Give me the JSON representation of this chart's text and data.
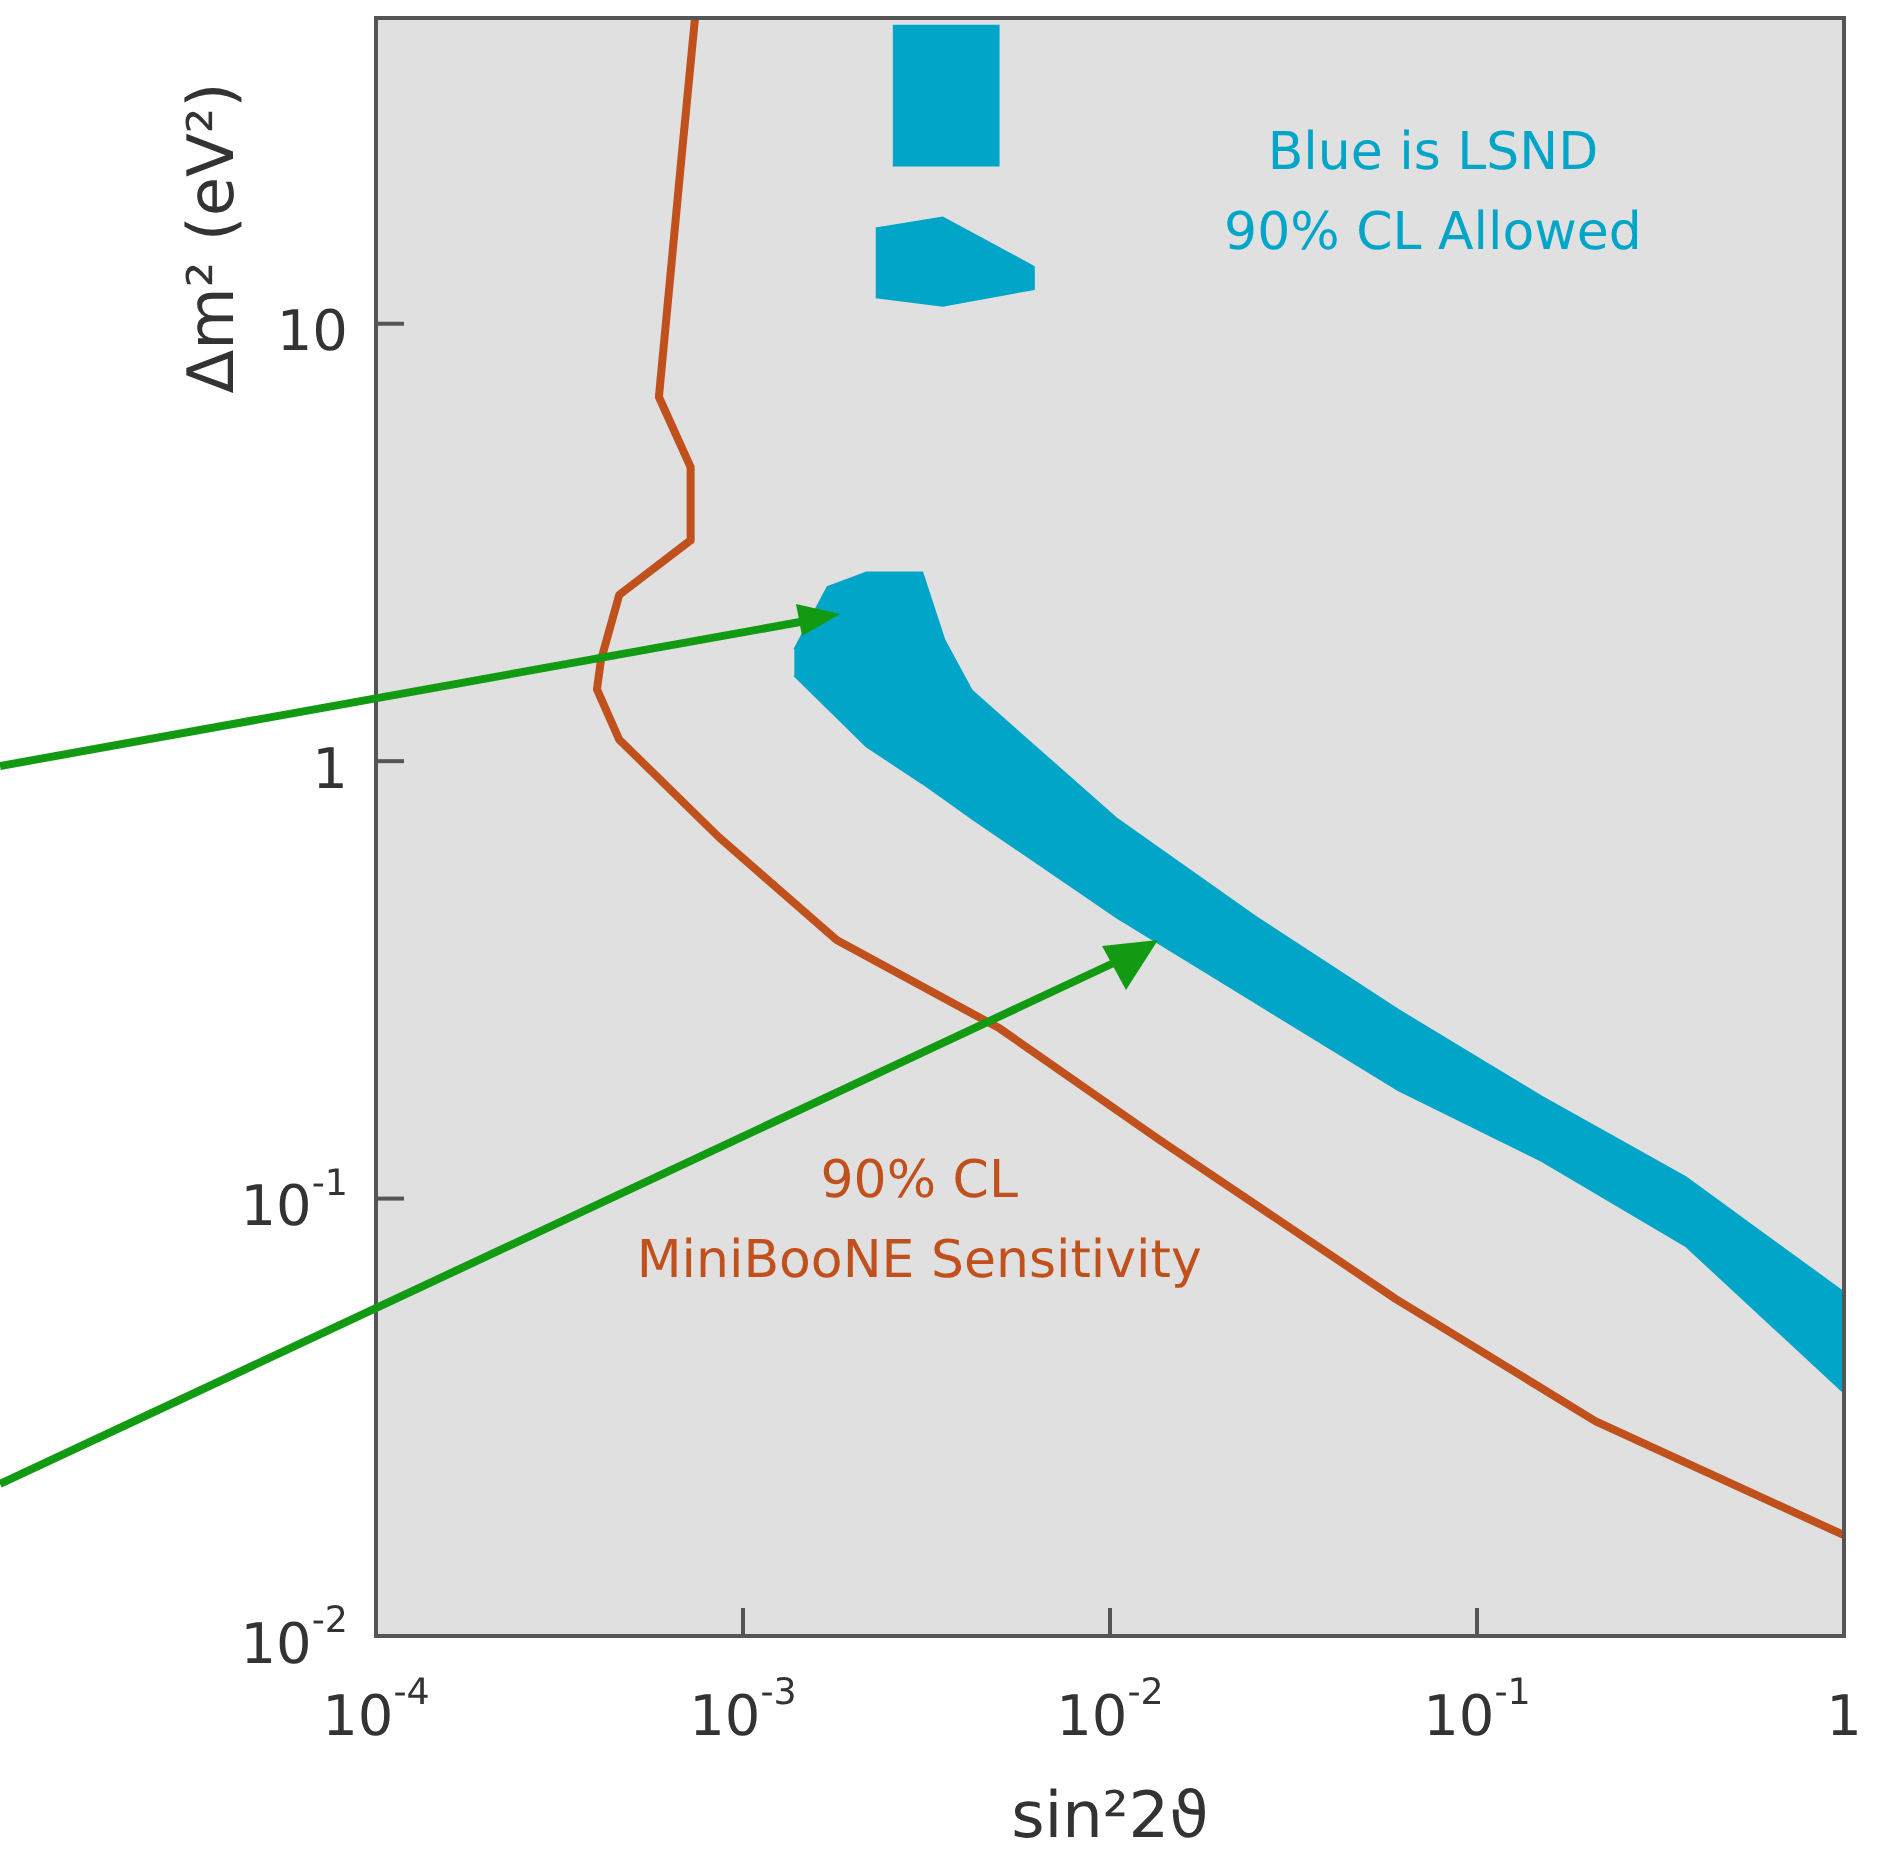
{
  "chart_data": {
    "type": "area",
    "xlabel": "sin²2ϑ",
    "ylabel": "Δm² (eV²)",
    "log": "xy",
    "legend": false,
    "xlim": [
      0.0001,
      1
    ],
    "ylim": [
      0.01,
      50
    ],
    "xticks": [
      {
        "value": 0.0001,
        "label": "10$^{-4}$"
      },
      {
        "value": 0.001,
        "label": "10$^{-3}$"
      },
      {
        "value": 0.01,
        "label": "10$^{-2}$"
      },
      {
        "value": 0.1,
        "label": "10$^{-1}$"
      },
      1
    ],
    "yticks": [
      {
        "value": 0.01,
        "label": "10$^{-2}$"
      },
      {
        "value": 0.1,
        "label": "10$^{-1}$"
      },
      1,
      10
    ],
    "series": [
      {
        "color": "#00a5c8",
        "x": [
          0.00138,
          0.0017,
          0.00217,
          0.00308,
          0.00354,
          0.0042,
          0.0104,
          0.025,
          0.061,
          0.15,
          0.37,
          1,
          1,
          0.37,
          0.15,
          0.061,
          0.025,
          0.0104,
          0.0042,
          0.00354,
          0.00308,
          0.00217,
          0.00138
        ],
        "values": [
          1.8,
          2.5,
          2.7,
          2.7,
          1.89,
          1.45,
          0.74,
          0.44,
          0.27,
          0.171,
          0.112,
          0.061,
          0.036,
          0.078,
          0.122,
          0.177,
          0.28,
          0.44,
          0.74,
          0.82,
          0.89,
          1.08,
          1.57
        ]
      },
      {
        "type": "line",
        "color": "#c0501c",
        "x": [
          0.00074,
          0.00068,
          0.00059,
          0.00072,
          0.00072,
          0.00046,
          0.00041,
          0.0004,
          0.00046,
          0.00086,
          0.0018,
          0.005,
          0.0135,
          0.06,
          0.21,
          1
        ],
        "values": [
          50,
          24,
          6.8,
          4.7,
          3.2,
          2.4,
          1.7,
          1.46,
          1.12,
          0.67,
          0.39,
          0.245,
          0.137,
          0.059,
          0.031,
          0.017
        ]
      },
      {
        "color": "#00a5c8",
        "x": [
          0.0023,
          0.0035,
          0.0062,
          0.0062,
          0.0035,
          0.0023
        ],
        "values": [
          16.5,
          17.5,
          13.5,
          12,
          11,
          11.5
        ]
      },
      {
        "color": "#00a5c8",
        "x": [
          0.00256,
          0.00497,
          0.00497,
          0.00256
        ],
        "values": [
          48,
          48,
          23,
          23
        ]
      }
    ],
    "annotations": [
      "Blue is LSND\n90% CL Allowed",
      "90% CL\nMiniBooNE Sensitivity"
    ]
  }
}
